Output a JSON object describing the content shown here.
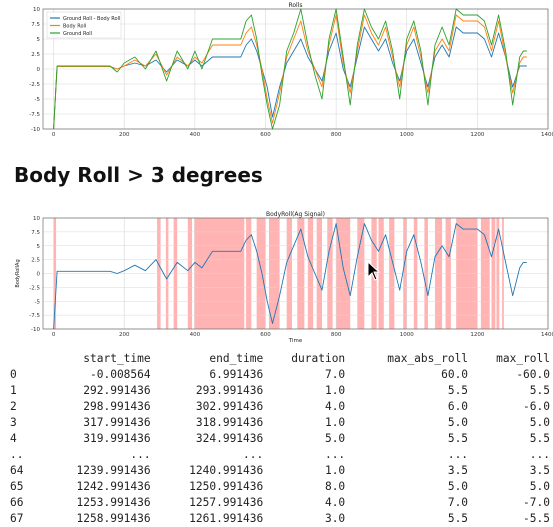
{
  "chart_data": [
    {
      "type": "line",
      "title": "Rolls",
      "xlabel": "",
      "ylabel": "",
      "xlim": [
        -30,
        1400
      ],
      "ylim": [
        -10,
        10
      ],
      "xticks": [
        0,
        200,
        400,
        600,
        800,
        1000,
        1200,
        1400
      ],
      "yticks": [
        -10.0,
        -7.5,
        -5.0,
        -2.5,
        0.0,
        2.5,
        5.0,
        7.5,
        10.0
      ],
      "grid": true,
      "legend": "top-left",
      "series": [
        {
          "name": "Ground Roll - Body Roll",
          "color": "#1f77b4",
          "x": [
            0,
            10,
            20,
            60,
            100,
            140,
            160,
            180,
            200,
            230,
            260,
            290,
            320,
            350,
            380,
            400,
            420,
            450,
            480,
            510,
            530,
            545,
            560,
            575,
            590,
            605,
            620,
            640,
            660,
            680,
            700,
            720,
            740,
            760,
            780,
            800,
            820,
            840,
            860,
            880,
            900,
            920,
            940,
            960,
            980,
            1000,
            1020,
            1040,
            1060,
            1080,
            1100,
            1120,
            1140,
            1160,
            1180,
            1200,
            1220,
            1240,
            1260,
            1280,
            1300,
            1320,
            1330,
            1340
          ],
          "y": [
            -10,
            0.4,
            0.4,
            0.4,
            0.4,
            0.4,
            0.4,
            0,
            0.5,
            1.0,
            0.5,
            1.5,
            -0.5,
            1.5,
            0.5,
            1.5,
            0.5,
            2.0,
            2.0,
            2.0,
            2.0,
            4.0,
            5.0,
            3.0,
            0,
            -3,
            -8,
            -3,
            1,
            3,
            5,
            2,
            0,
            -2,
            3,
            6,
            0,
            -3,
            2,
            7,
            5,
            3,
            5,
            1,
            -2,
            3,
            5,
            1,
            -3,
            2,
            4,
            2,
            7,
            6,
            6,
            6,
            5,
            2,
            6,
            2,
            -3,
            0.5,
            0.5,
            0.5
          ]
        },
        {
          "name": "Body Roll",
          "color": "#ff7f0e",
          "x": [
            0,
            10,
            20,
            60,
            100,
            140,
            160,
            180,
            200,
            230,
            260,
            290,
            320,
            350,
            380,
            400,
            420,
            450,
            480,
            510,
            530,
            545,
            560,
            575,
            590,
            605,
            620,
            640,
            660,
            680,
            700,
            720,
            740,
            760,
            780,
            800,
            820,
            840,
            860,
            880,
            900,
            920,
            940,
            960,
            980,
            1000,
            1020,
            1040,
            1060,
            1080,
            1100,
            1120,
            1140,
            1160,
            1180,
            1200,
            1220,
            1240,
            1260,
            1280,
            1300,
            1320,
            1330,
            1340
          ],
          "y": [
            -10,
            0.4,
            0.4,
            0.4,
            0.4,
            0.4,
            0.4,
            0,
            0.5,
            1.5,
            0.5,
            2.5,
            -1.0,
            2.0,
            0.5,
            2.0,
            1.0,
            4.0,
            4.0,
            4.0,
            4.0,
            6.0,
            7.0,
            4.0,
            0,
            -5,
            -9,
            -4,
            2,
            5,
            8,
            3,
            0,
            -3,
            4,
            9,
            1,
            -4,
            3,
            9,
            6,
            4,
            7,
            2,
            -3,
            4,
            7,
            2,
            -4,
            3,
            5,
            3,
            9,
            8,
            8,
            8,
            7,
            3,
            8,
            2,
            -4,
            1,
            2,
            2
          ]
        },
        {
          "name": "Ground Roll",
          "color": "#2ca02c",
          "x": [
            0,
            10,
            20,
            60,
            100,
            140,
            160,
            180,
            200,
            230,
            260,
            290,
            320,
            350,
            380,
            400,
            420,
            450,
            480,
            510,
            530,
            545,
            560,
            575,
            590,
            605,
            620,
            640,
            660,
            680,
            700,
            720,
            740,
            760,
            780,
            800,
            820,
            840,
            860,
            880,
            900,
            920,
            940,
            960,
            980,
            1000,
            1020,
            1040,
            1060,
            1080,
            1100,
            1120,
            1140,
            1160,
            1180,
            1200,
            1220,
            1240,
            1260,
            1280,
            1300,
            1320,
            1330,
            1340
          ],
          "y": [
            -10,
            0.5,
            0.5,
            0.5,
            0.5,
            0.5,
            0.5,
            -0.5,
            1.0,
            2.0,
            0.0,
            3.0,
            -2.0,
            3.0,
            0.0,
            3.0,
            0.0,
            5.0,
            5.0,
            5.0,
            5.0,
            8.0,
            9.0,
            5.0,
            -1,
            -6,
            -10,
            -6,
            3,
            6,
            10,
            4,
            -1,
            -5,
            5,
            10,
            2,
            -6,
            4,
            10,
            7,
            5,
            8,
            3,
            -5,
            5,
            8,
            3,
            -6,
            4,
            7,
            4,
            10,
            9,
            9,
            9,
            8,
            4,
            9,
            3,
            -6,
            2,
            3,
            3
          ]
        }
      ]
    },
    {
      "type": "line",
      "title": "BodyRoll(Ag Signal)",
      "xlabel": "Time",
      "ylabel": "BodyRollAg",
      "xlim": [
        -30,
        1400
      ],
      "ylim": [
        -10,
        10
      ],
      "xticks": [
        0,
        200,
        400,
        600,
        800,
        1000,
        1200,
        1400
      ],
      "yticks": [
        -10.0,
        -7.5,
        -5.0,
        -2.5,
        0.0,
        2.5,
        5.0,
        7.5,
        10.0
      ],
      "grid": true,
      "legend": "none",
      "shaded_intervals": [
        [
          -0.01,
          7
        ],
        [
          293,
          303
        ],
        [
          318,
          325
        ],
        [
          340,
          350
        ],
        [
          380,
          392
        ],
        [
          398,
          540
        ],
        [
          545,
          560
        ],
        [
          575,
          600
        ],
        [
          610,
          640
        ],
        [
          660,
          675
        ],
        [
          690,
          710
        ],
        [
          720,
          735
        ],
        [
          745,
          760
        ],
        [
          775,
          790
        ],
        [
          800,
          840
        ],
        [
          860,
          880
        ],
        [
          900,
          915
        ],
        [
          920,
          935
        ],
        [
          950,
          965
        ],
        [
          990,
          1000
        ],
        [
          1020,
          1030
        ],
        [
          1050,
          1060
        ],
        [
          1080,
          1100
        ],
        [
          1110,
          1125
        ],
        [
          1140,
          1200
        ],
        [
          1210,
          1235
        ],
        [
          1240,
          1251
        ],
        [
          1254,
          1262
        ],
        [
          1270,
          1275
        ]
      ],
      "series": [
        {
          "name": "",
          "color": "#1f77b4",
          "x": [
            0,
            10,
            20,
            60,
            100,
            140,
            160,
            180,
            200,
            230,
            260,
            290,
            320,
            350,
            380,
            400,
            420,
            450,
            480,
            510,
            530,
            545,
            560,
            575,
            590,
            605,
            620,
            640,
            660,
            680,
            700,
            720,
            740,
            760,
            780,
            800,
            820,
            840,
            860,
            880,
            900,
            920,
            940,
            960,
            980,
            1000,
            1020,
            1040,
            1060,
            1080,
            1100,
            1120,
            1140,
            1160,
            1180,
            1200,
            1220,
            1240,
            1260,
            1280,
            1300,
            1320,
            1330,
            1340
          ],
          "y": [
            -10,
            0.4,
            0.4,
            0.4,
            0.4,
            0.4,
            0.4,
            0,
            0.5,
            1.5,
            0.5,
            2.5,
            -1.0,
            2.0,
            0.5,
            2.0,
            1.0,
            4.0,
            4.0,
            4.0,
            4.0,
            6.0,
            7.0,
            4.0,
            0,
            -5,
            -9,
            -4,
            2,
            5,
            8,
            3,
            0,
            -3,
            4,
            9,
            1,
            -4,
            3,
            9,
            6,
            4,
            7,
            2,
            -3,
            4,
            7,
            2,
            -4,
            3,
            5,
            3,
            9,
            8,
            8,
            8,
            7,
            3,
            8,
            2,
            -4,
            1,
            2,
            2
          ]
        }
      ]
    }
  ],
  "heading": "Body Roll > 3 degrees",
  "table": {
    "columns": [
      "start_time",
      "end_time",
      "duration",
      "max_abs_roll",
      "max_roll"
    ],
    "rows": [
      {
        "index": "0",
        "values": [
          "-0.008564",
          "6.991436",
          "7.0",
          "60.0",
          "-60.0"
        ]
      },
      {
        "index": "1",
        "values": [
          "292.991436",
          "293.991436",
          "1.0",
          "5.5",
          "5.5"
        ]
      },
      {
        "index": "2",
        "values": [
          "298.991436",
          "302.991436",
          "4.0",
          "6.0",
          "-6.0"
        ]
      },
      {
        "index": "3",
        "values": [
          "317.991436",
          "318.991436",
          "1.0",
          "5.0",
          "5.0"
        ]
      },
      {
        "index": "4",
        "values": [
          "319.991436",
          "324.991436",
          "5.0",
          "5.5",
          "5.5"
        ]
      },
      {
        "index": "..",
        "values": [
          "...",
          "...",
          "...",
          "...",
          "..."
        ]
      },
      {
        "index": "64",
        "values": [
          "1239.991436",
          "1240.991436",
          "1.0",
          "3.5",
          "3.5"
        ]
      },
      {
        "index": "65",
        "values": [
          "1242.991436",
          "1250.991436",
          "8.0",
          "5.0",
          "5.0"
        ]
      },
      {
        "index": "66",
        "values": [
          "1253.991436",
          "1257.991436",
          "4.0",
          "7.0",
          "-7.0"
        ]
      },
      {
        "index": "67",
        "values": [
          "1258.991436",
          "1261.991436",
          "3.0",
          "5.5",
          "-5.5"
        ]
      }
    ]
  }
}
